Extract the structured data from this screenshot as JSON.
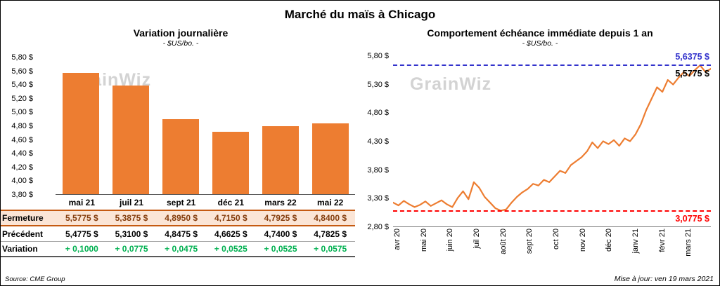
{
  "page": {
    "title": "Marché du maïs à Chicago",
    "watermark": "GrainWiz",
    "source": "Source: CME Group",
    "updated": "Mise à jour: ven 19 mars 2021"
  },
  "colors": {
    "orange": "#ED7D31",
    "blue": "#3333CC",
    "red": "#FF0000",
    "green": "#00B050",
    "fermeture_bg": "#FBE5D6",
    "fermeture_text": "#843C0C"
  },
  "table": {
    "rows": [
      {
        "label": "Fermeture",
        "values": [
          "5,5775  $",
          "5,3875  $",
          "4,8950  $",
          "4,7150  $",
          "4,7925  $",
          "4,8400  $"
        ]
      },
      {
        "label": "Précédent",
        "values": [
          "5,4775  $",
          "5,3100  $",
          "4,8475  $",
          "4,6625  $",
          "4,7400  $",
          "4,7825  $"
        ]
      },
      {
        "label": "Variation",
        "values": [
          "+ 0,1000",
          "+ 0,0775",
          "+ 0,0475",
          "+ 0,0525",
          "+ 0,0525",
          "+ 0,0575"
        ]
      }
    ]
  },
  "chart_data": [
    {
      "type": "bar",
      "title": "Variation journalière",
      "subtitle": "- $US/bo. -",
      "categories": [
        "mai 21",
        "juil 21",
        "sept 21",
        "déc 21",
        "mars 22",
        "mai 22"
      ],
      "values": [
        5.5775,
        5.3875,
        4.895,
        4.715,
        4.7925,
        4.84
      ],
      "ylim": [
        3.8,
        5.8
      ],
      "y_ticks": [
        "5,80 $",
        "5,60 $",
        "5,40 $",
        "5,20 $",
        "5,00 $",
        "4,80 $",
        "4,60 $",
        "4,40 $",
        "4,20 $",
        "4,00 $",
        "3,80 $"
      ],
      "bar_color": "#ED7D31",
      "grid": false,
      "legend": false
    },
    {
      "type": "line",
      "title": "Comportement échéance immédiate depuis 1 an",
      "subtitle": "- $US/bo. -",
      "x_labels": [
        "avr 20",
        "mai 20",
        "juin 20",
        "juil 20",
        "août 20",
        "sept 20",
        "oct 20",
        "nov 20",
        "déc 20",
        "janv 21",
        "févr 21",
        "mars 21"
      ],
      "values": [
        3.22,
        3.17,
        3.25,
        3.19,
        3.14,
        3.18,
        3.24,
        3.16,
        3.21,
        3.26,
        3.19,
        3.14,
        3.3,
        3.42,
        3.28,
        3.58,
        3.48,
        3.32,
        3.22,
        3.12,
        3.0775,
        3.1,
        3.22,
        3.32,
        3.4,
        3.46,
        3.55,
        3.52,
        3.62,
        3.58,
        3.68,
        3.78,
        3.74,
        3.88,
        3.95,
        4.02,
        4.12,
        4.28,
        4.18,
        4.3,
        4.25,
        4.32,
        4.22,
        4.35,
        4.3,
        4.42,
        4.6,
        4.85,
        5.05,
        5.25,
        5.17,
        5.38,
        5.3,
        5.42,
        5.52,
        5.45,
        5.55,
        5.6375,
        5.52,
        5.5775
      ],
      "ylim": [
        2.8,
        5.8
      ],
      "y_ticks": [
        "5,80 $",
        "5,30 $",
        "4,80 $",
        "4,30 $",
        "3,80 $",
        "3,30 $",
        "2,80 $"
      ],
      "line_color": "#ED7D31",
      "grid": false,
      "legend": false,
      "annotations": {
        "high": {
          "label": "5,6375 $",
          "value": 5.6375,
          "color": "#3333CC",
          "style": "dashed"
        },
        "last": {
          "label": "5,5775 $",
          "value": 5.5775,
          "color": "#000000"
        },
        "low": {
          "label": "3,0775 $",
          "value": 3.0775,
          "color": "#FF0000",
          "style": "dashed"
        }
      }
    }
  ]
}
